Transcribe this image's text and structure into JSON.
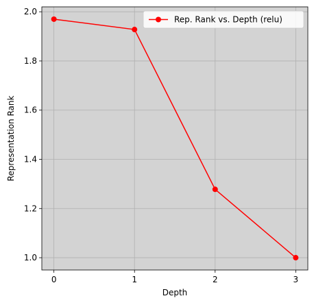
{
  "chart_data": {
    "type": "line",
    "title": "",
    "xlabel": "Depth",
    "ylabel": "Representation Rank",
    "x": [
      0,
      1,
      2,
      3
    ],
    "series": [
      {
        "name": "Rep. Rank vs. Depth (relu)",
        "values": [
          1.97,
          1.928,
          1.278,
          1.0
        ],
        "color": "#ff0000",
        "marker": "circle"
      }
    ],
    "xlim": [
      -0.15,
      3.15
    ],
    "ylim": [
      0.95,
      2.02
    ],
    "xticks": [
      0,
      1,
      2,
      3
    ],
    "xtick_labels": [
      "0",
      "1",
      "2",
      "3"
    ],
    "yticks": [
      1.0,
      1.2,
      1.4,
      1.6,
      1.8,
      2.0
    ],
    "ytick_labels": [
      "1.0",
      "1.2",
      "1.4",
      "1.6",
      "1.8",
      "2.0"
    ],
    "grid": true,
    "legend_position": "top-right",
    "background_color": "#d3d3d3",
    "grid_color": "#b0b0b0"
  }
}
